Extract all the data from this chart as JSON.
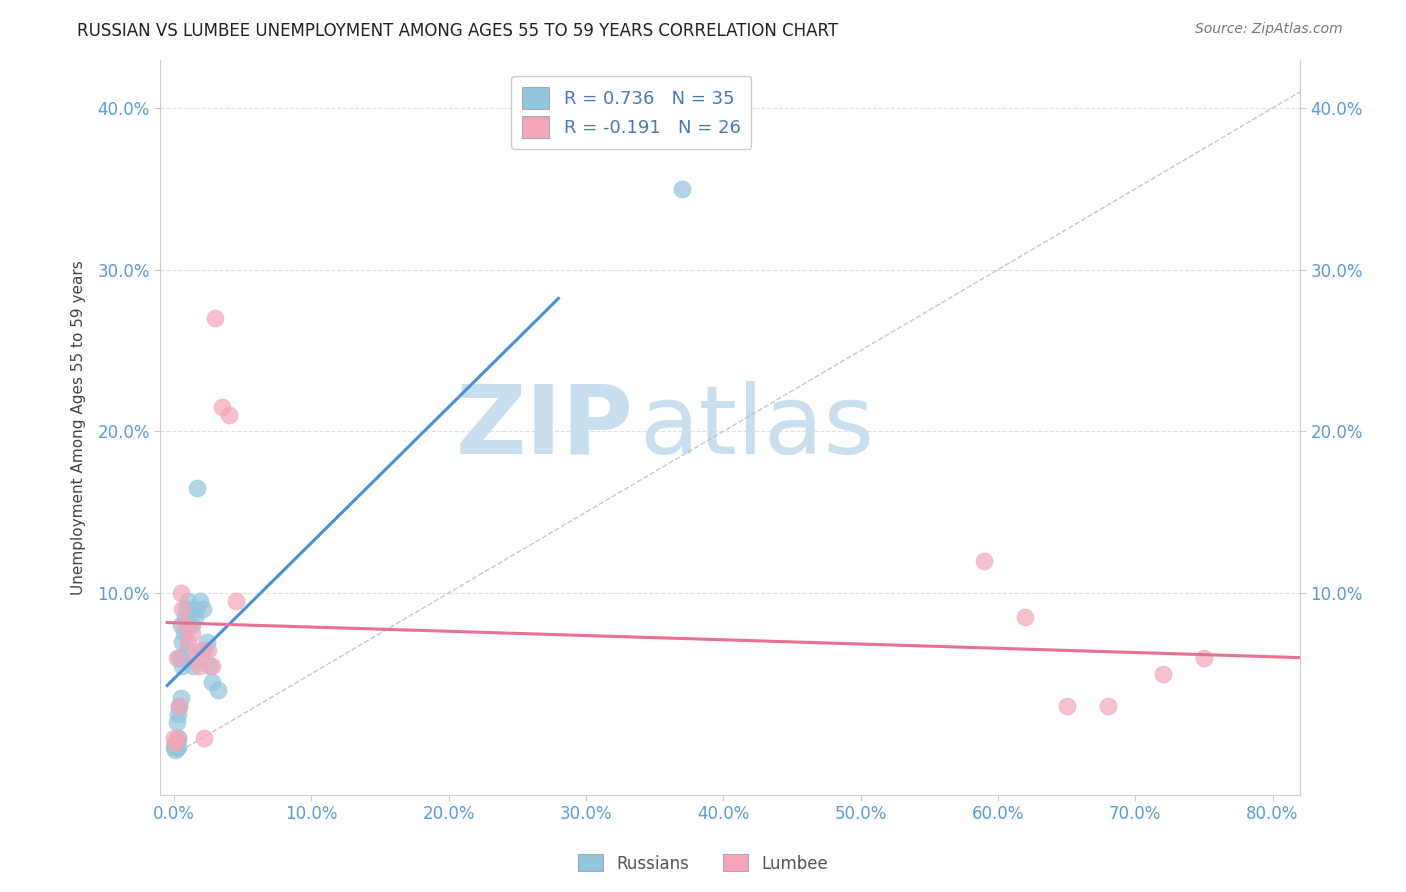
{
  "title": "RUSSIAN VS LUMBEE UNEMPLOYMENT AMONG AGES 55 TO 59 YEARS CORRELATION CHART",
  "source": "Source: ZipAtlas.com",
  "ylabel": "Unemployment Among Ages 55 to 59 years",
  "xlabel_ticks": [
    "0.0%",
    "10.0%",
    "20.0%",
    "30.0%",
    "40.0%",
    "50.0%",
    "60.0%",
    "70.0%",
    "80.0%"
  ],
  "xlabel_vals": [
    0.0,
    0.1,
    0.2,
    0.3,
    0.4,
    0.5,
    0.6,
    0.7,
    0.8
  ],
  "ytick_vals": [
    0.1,
    0.2,
    0.3,
    0.4
  ],
  "ytick_labels": [
    "10.0%",
    "20.0%",
    "30.0%",
    "40.0%"
  ],
  "xlim": [
    -0.01,
    0.82
  ],
  "ylim": [
    -0.025,
    0.43
  ],
  "russian_color": "#92c5de",
  "lumbee_color": "#f4a6b8",
  "russian_line_color": "#4a90d9",
  "lumbee_line_color": "#e87090",
  "russian_R": 0.736,
  "russian_N": 35,
  "lumbee_R": -0.191,
  "lumbee_N": 26,
  "legend_label_russian": "Russians",
  "legend_label_lumbee": "Lumbee",
  "russians_x": [
    0.0,
    0.001,
    0.001,
    0.002,
    0.002,
    0.002,
    0.003,
    0.003,
    0.003,
    0.004,
    0.004,
    0.005,
    0.005,
    0.005,
    0.006,
    0.006,
    0.007,
    0.008,
    0.009,
    0.01,
    0.01,
    0.011,
    0.013,
    0.014,
    0.015,
    0.016,
    0.017,
    0.019,
    0.021,
    0.022,
    0.024,
    0.026,
    0.028,
    0.032,
    0.37
  ],
  "russians_y": [
    0.005,
    0.003,
    0.007,
    0.004,
    0.008,
    0.02,
    0.005,
    0.01,
    0.025,
    0.03,
    0.06,
    0.035,
    0.06,
    0.08,
    0.055,
    0.07,
    0.075,
    0.085,
    0.09,
    0.065,
    0.095,
    0.08,
    0.08,
    0.055,
    0.085,
    0.09,
    0.165,
    0.095,
    0.09,
    0.065,
    0.07,
    0.055,
    0.045,
    0.04,
    0.35
  ],
  "lumbees_x": [
    0.0,
    0.001,
    0.002,
    0.003,
    0.004,
    0.005,
    0.006,
    0.008,
    0.01,
    0.013,
    0.015,
    0.018,
    0.02,
    0.022,
    0.025,
    0.028,
    0.03,
    0.035,
    0.04,
    0.045,
    0.59,
    0.62,
    0.65,
    0.68,
    0.72,
    0.75
  ],
  "lumbees_y": [
    0.01,
    0.007,
    0.06,
    0.01,
    0.03,
    0.1,
    0.09,
    0.08,
    0.07,
    0.075,
    0.06,
    0.055,
    0.065,
    0.01,
    0.065,
    0.055,
    0.27,
    0.215,
    0.21,
    0.095,
    0.12,
    0.085,
    0.03,
    0.03,
    0.05,
    0.06
  ],
  "background_color": "#ffffff",
  "grid_color": "#cccccc",
  "watermark_zip": "ZIP",
  "watermark_atlas": "atlas",
  "watermark_color": "#c8dff0"
}
